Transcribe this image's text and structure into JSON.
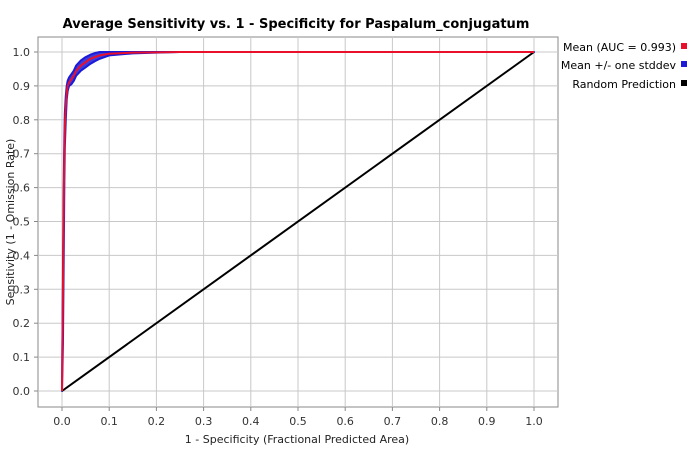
{
  "chart_data": {
    "type": "line",
    "title": "Average Sensitivity vs. 1 - Specificity for Paspalum_conjugatum",
    "xlabel": "1 - Specificity (Fractional Predicted Area)",
    "ylabel": "Sensitivity (1 - Omission Rate)",
    "xlim": [
      0,
      1
    ],
    "ylim": [
      0,
      1
    ],
    "x_ticks": [
      "0.0",
      "0.1",
      "0.2",
      "0.3",
      "0.4",
      "0.5",
      "0.6",
      "0.7",
      "0.8",
      "0.9",
      "1.0"
    ],
    "y_ticks": [
      "0.0",
      "0.1",
      "0.2",
      "0.3",
      "0.4",
      "0.5",
      "0.6",
      "0.7",
      "0.8",
      "0.9",
      "1.0"
    ],
    "grid": true,
    "legend_position": "right",
    "series": [
      {
        "name": "Mean (AUC = 0.993)",
        "color": "#e8102a",
        "x": [
          0.0,
          0.002,
          0.004,
          0.005,
          0.006,
          0.008,
          0.01,
          0.012,
          0.015,
          0.02,
          0.025,
          0.03,
          0.04,
          0.05,
          0.06,
          0.07,
          0.08,
          0.1,
          0.15,
          0.2,
          0.25,
          0.5,
          1.0
        ],
        "y": [
          0.0,
          0.3,
          0.6,
          0.7,
          0.78,
          0.84,
          0.88,
          0.9,
          0.91,
          0.92,
          0.93,
          0.945,
          0.96,
          0.97,
          0.98,
          0.985,
          0.99,
          0.995,
          0.998,
          0.999,
          1.0,
          1.0,
          1.0
        ]
      },
      {
        "name": "Mean +/- one stddev",
        "color": "#1a1ad8",
        "upper": [
          0.0,
          0.35,
          0.65,
          0.75,
          0.82,
          0.87,
          0.9,
          0.915,
          0.925,
          0.935,
          0.945,
          0.96,
          0.975,
          0.985,
          0.992,
          0.997,
          1.0,
          1.0,
          1.0,
          1.0,
          1.0,
          1.0,
          1.0
        ],
        "lower": [
          0.0,
          0.14,
          0.45,
          0.62,
          0.72,
          0.8,
          0.86,
          0.885,
          0.9,
          0.905,
          0.915,
          0.93,
          0.945,
          0.955,
          0.965,
          0.973,
          0.98,
          0.99,
          0.996,
          0.998,
          1.0,
          1.0,
          1.0
        ]
      },
      {
        "name": "Random Prediction",
        "color": "#000000",
        "x": [
          0.0,
          1.0
        ],
        "y": [
          0.0,
          1.0
        ]
      }
    ]
  }
}
